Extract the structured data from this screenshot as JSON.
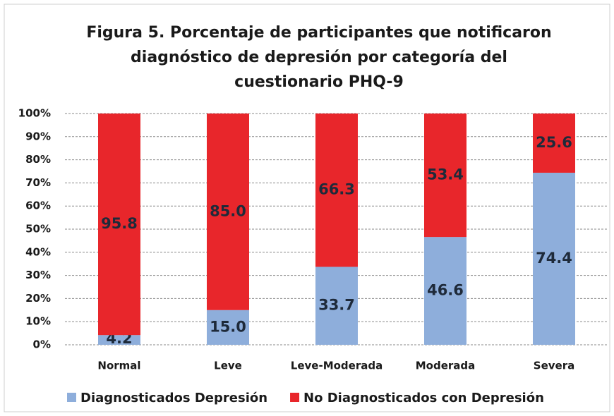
{
  "chart_data": {
    "type": "stacked_bar",
    "title": [
      "Figura 5. Porcentaje de participantes que notificaron",
      "diagnóstico de depresión por categoría del",
      "cuestionario PHQ-9"
    ],
    "categories": [
      "Normal",
      "Leve",
      "Leve-Moderada",
      "Moderada",
      "Severa"
    ],
    "series": [
      {
        "name": "Diagnosticados Depresión",
        "color": "#8eaedb",
        "values": [
          4.2,
          15.0,
          33.7,
          46.6,
          74.4
        ],
        "value_labels": [
          "4.2",
          "15.0",
          "33.7",
          "46.6",
          "74.4"
        ]
      },
      {
        "name": "No Diagnosticados con Depresión",
        "color": "#e8262b",
        "values": [
          95.8,
          85.0,
          66.3,
          53.4,
          25.6
        ],
        "value_labels": [
          "95.8",
          "85.0",
          "66.3",
          "53.4",
          "25.6"
        ]
      }
    ],
    "ylim": [
      0,
      100
    ],
    "yticks": [
      {
        "value": 0,
        "label": "0%"
      },
      {
        "value": 10,
        "label": "10%"
      },
      {
        "value": 20,
        "label": "20%"
      },
      {
        "value": 30,
        "label": "30%"
      },
      {
        "value": 40,
        "label": "40%"
      },
      {
        "value": 50,
        "label": "50%"
      },
      {
        "value": 60,
        "label": "60%"
      },
      {
        "value": 70,
        "label": "70%"
      },
      {
        "value": 80,
        "label": "80%"
      },
      {
        "value": 90,
        "label": "90%"
      },
      {
        "value": 100,
        "label": "100%"
      }
    ],
    "grid": true,
    "legend": "bottom"
  }
}
